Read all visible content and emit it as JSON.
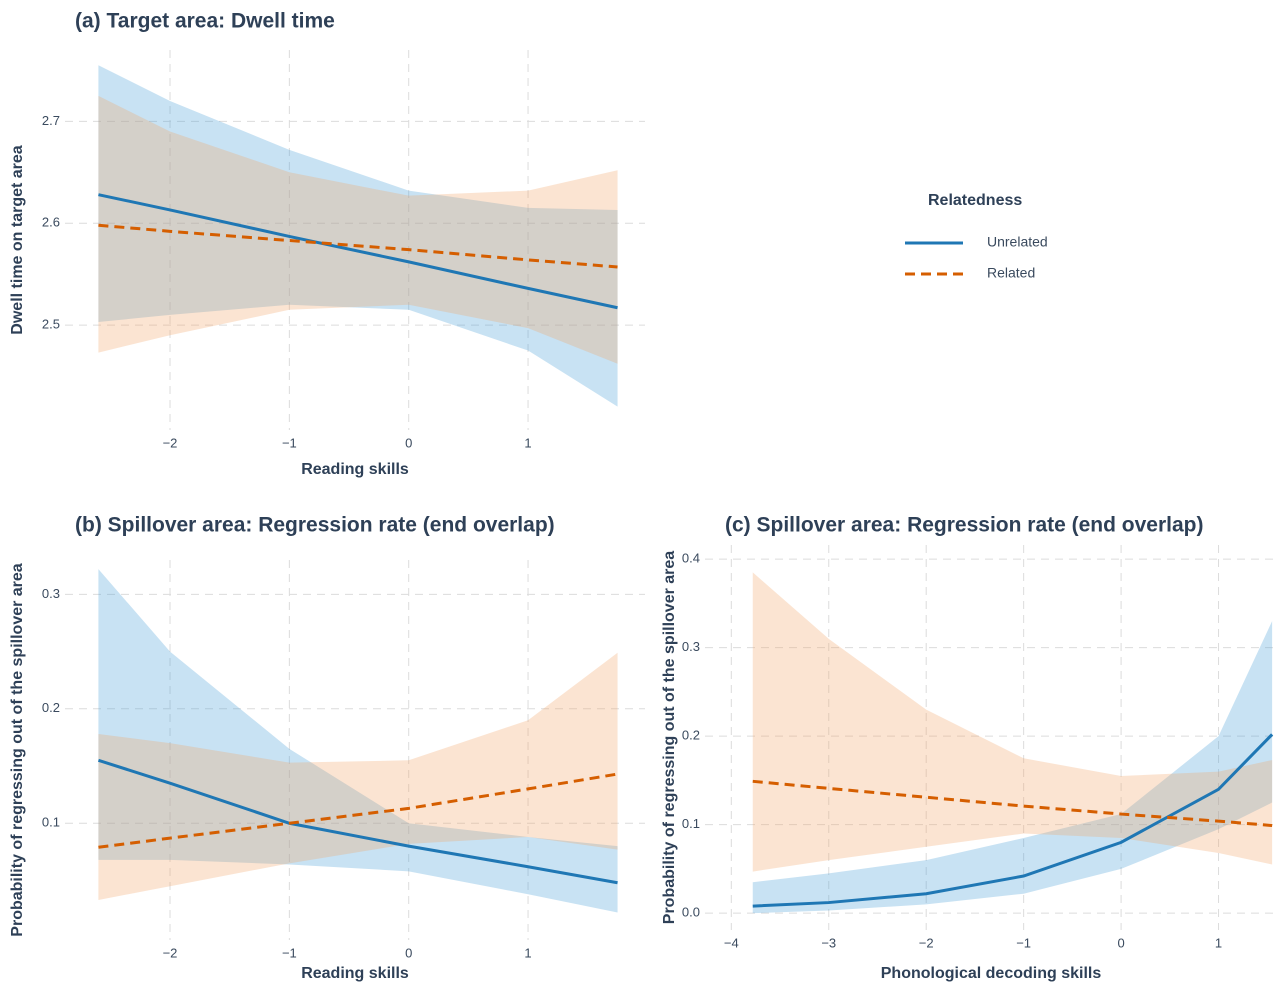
{
  "chart_data": [
    {
      "type": "line",
      "title": "(a) Target area: Dwell time",
      "xlabel": "Reading skills",
      "ylabel": "Dwell time on target area",
      "legend_title": "Relatedness",
      "x": [
        -2.6,
        -2,
        -1,
        0,
        1,
        1.75
      ],
      "xlim": [
        -2.88,
        1.98
      ],
      "ylim": [
        2.397,
        2.77
      ],
      "xticks": [
        {
          "value": -2,
          "label": "−2"
        },
        {
          "value": -1,
          "label": "−1"
        },
        0,
        1
      ],
      "yticks": [
        2.5,
        2.6,
        2.7
      ],
      "grid": true,
      "series": [
        {
          "name": "Unrelated",
          "color": "#1f77b4",
          "dash": false,
          "band_color": "#4a9fd8",
          "values": [
            2.628,
            2.613,
            2.587,
            2.562,
            2.536,
            2.517
          ],
          "upper": [
            2.755,
            2.72,
            2.672,
            2.632,
            2.615,
            2.613
          ],
          "lower": [
            2.503,
            2.51,
            2.52,
            2.515,
            2.475,
            2.42
          ]
        },
        {
          "name": "Related",
          "color": "#d55e00",
          "dash": true,
          "band_color": "#f2a56a",
          "values": [
            2.598,
            2.592,
            2.583,
            2.574,
            2.564,
            2.557
          ],
          "upper": [
            2.725,
            2.69,
            2.65,
            2.627,
            2.632,
            2.652
          ],
          "lower": [
            2.473,
            2.49,
            2.515,
            2.52,
            2.497,
            2.462
          ]
        }
      ]
    },
    {
      "type": "line",
      "title": "(b) Spillover area: Regression rate (end overlap)",
      "xlabel": "Reading skills",
      "ylabel": "Probability of regressing out of the spillover area",
      "x": [
        -2.6,
        -2,
        -1,
        0,
        1,
        1.75
      ],
      "xlim": [
        -2.88,
        1.98
      ],
      "ylim": [
        -0.002,
        0.33
      ],
      "xticks": [
        {
          "value": -2,
          "label": "−2"
        },
        {
          "value": -1,
          "label": "−1"
        },
        0,
        1
      ],
      "yticks": [
        0.1,
        0.2,
        0.3
      ],
      "grid": true,
      "series": [
        {
          "color": "#1f77b4",
          "dash": false,
          "band_color": "#4a9fd8",
          "values": [
            0.155,
            0.135,
            0.1,
            0.08,
            0.062,
            0.048
          ],
          "upper": [
            0.322,
            0.25,
            0.165,
            0.1,
            0.088,
            0.08
          ],
          "lower": [
            0.068,
            0.068,
            0.064,
            0.058,
            0.038,
            0.022
          ]
        },
        {
          "color": "#d55e00",
          "dash": true,
          "band_color": "#f2a56a",
          "values": [
            0.079,
            0.087,
            0.1,
            0.113,
            0.13,
            0.143
          ],
          "upper": [
            0.178,
            0.17,
            0.153,
            0.155,
            0.19,
            0.249
          ],
          "lower": [
            0.033,
            0.045,
            0.065,
            0.082,
            0.088,
            0.077
          ]
        }
      ]
    },
    {
      "type": "line",
      "title": "(c) Spillover area: Regression rate (end overlap)",
      "xlabel": "Phonological decoding skills",
      "ylabel": "Probability of regressing out of the spillover area",
      "x": [
        -3.78,
        -3,
        -2,
        -1,
        0,
        1,
        1.55
      ],
      "xlim": [
        -4.27,
        1.6
      ],
      "ylim": [
        -0.019,
        0.416
      ],
      "xticks": [
        {
          "value": -4,
          "label": "−4"
        },
        {
          "value": -3,
          "label": "−3"
        },
        {
          "value": -2,
          "label": "−2"
        },
        {
          "value": -1,
          "label": "−1"
        },
        0,
        1
      ],
      "yticks": [
        {
          "value": 0,
          "label": "0.0"
        },
        0.1,
        0.2,
        0.3,
        0.4
      ],
      "grid": true,
      "series": [
        {
          "color": "#1f77b4",
          "dash": false,
          "band_color": "#4a9fd8",
          "values": [
            0.008,
            0.012,
            0.022,
            0.042,
            0.08,
            0.14,
            0.202
          ],
          "upper": [
            0.035,
            0.045,
            0.06,
            0.085,
            0.112,
            0.2,
            0.33
          ],
          "lower": [
            0.0,
            0.003,
            0.01,
            0.022,
            0.05,
            0.095,
            0.125
          ]
        },
        {
          "color": "#d55e00",
          "dash": true,
          "band_color": "#f2a56a",
          "values": [
            0.149,
            0.141,
            0.131,
            0.121,
            0.112,
            0.104,
            0.099
          ],
          "upper": [
            0.385,
            0.31,
            0.23,
            0.175,
            0.155,
            0.16,
            0.173
          ],
          "lower": [
            0.047,
            0.06,
            0.075,
            0.09,
            0.085,
            0.068,
            0.055
          ]
        }
      ]
    }
  ]
}
